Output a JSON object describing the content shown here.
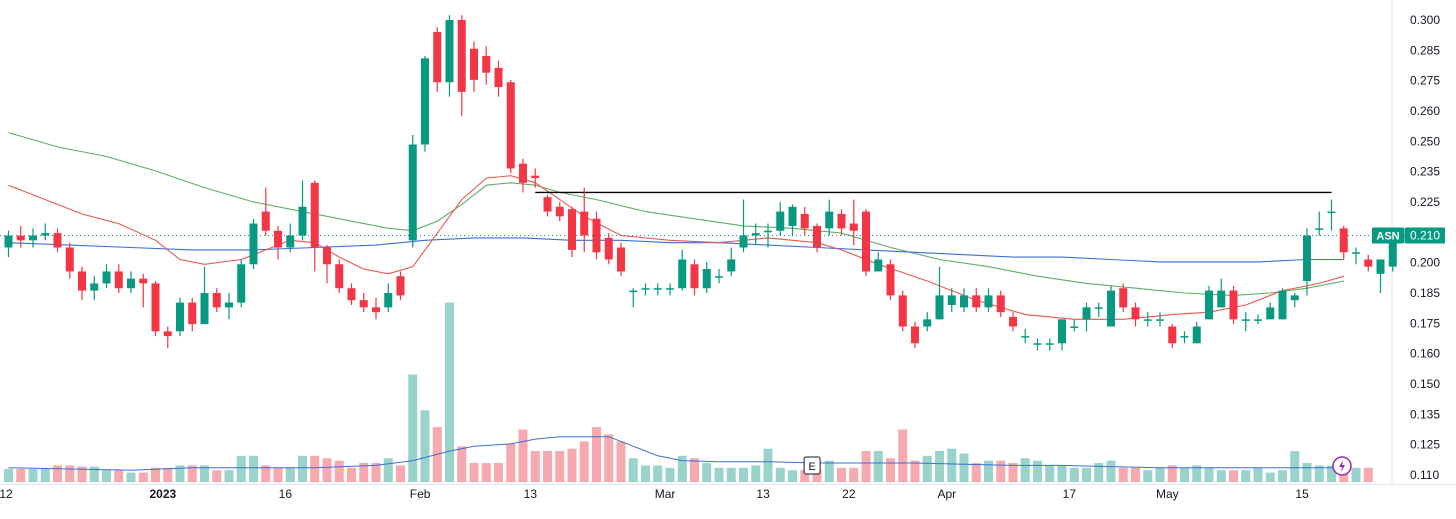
{
  "colors": {
    "up": "#089981",
    "down": "#f23645",
    "vol_up": "#9ad3cb",
    "vol_down": "#f6a9ae",
    "ma_green": "#5fae64",
    "ma_red": "#e8584f",
    "ma_blue": "#3b6fd6",
    "vol_ma": "#3b6fd6",
    "resistance": "#000000",
    "last_price": "#089981"
  },
  "chart_data": {
    "type": "candlestick",
    "symbol": "ASN",
    "last_price_label": "0.210",
    "earnings_marker": "E",
    "ylim": [
      0.107,
      0.302
    ],
    "y_ticks": [
      "0.300",
      "0.285",
      "0.275",
      "0.260",
      "0.250",
      "0.235",
      "0.225",
      "0.210",
      "0.200",
      "0.185",
      "0.175",
      "0.160",
      "0.150",
      "0.135",
      "0.125",
      "0.110"
    ],
    "x_ticks": [
      {
        "label": "12",
        "bar": -0.2,
        "major": false
      },
      {
        "label": "2023",
        "bar": 12.6,
        "major": true
      },
      {
        "label": "16",
        "bar": 22.6,
        "major": false
      },
      {
        "label": "Feb",
        "bar": 33.6,
        "major": false
      },
      {
        "label": "13",
        "bar": 42.6,
        "major": false
      },
      {
        "label": "Mar",
        "bar": 53.6,
        "major": false
      },
      {
        "label": "13",
        "bar": 61.6,
        "major": false
      },
      {
        "label": "22",
        "bar": 68.6,
        "major": false
      },
      {
        "label": "Apr",
        "bar": 76.6,
        "major": false
      },
      {
        "label": "17",
        "bar": 86.6,
        "major": false
      },
      {
        "label": "May",
        "bar": 94.6,
        "major": false
      },
      {
        "label": "15",
        "bar": 105.6,
        "major": false
      }
    ],
    "candles": [
      [
        0.205,
        0.21,
        0.201,
        0.212
      ],
      [
        0.21,
        0.208,
        0.205,
        0.214
      ],
      [
        0.208,
        0.21,
        0.205,
        0.213
      ],
      [
        0.21,
        0.211,
        0.208,
        0.215
      ],
      [
        0.211,
        0.205,
        0.203,
        0.213
      ],
      [
        0.205,
        0.195,
        0.192,
        0.207
      ],
      [
        0.195,
        0.187,
        0.183,
        0.197
      ],
      [
        0.187,
        0.19,
        0.183,
        0.193
      ],
      [
        0.19,
        0.195,
        0.188,
        0.198
      ],
      [
        0.195,
        0.188,
        0.186,
        0.198
      ],
      [
        0.188,
        0.192,
        0.186,
        0.195
      ],
      [
        0.192,
        0.19,
        0.18,
        0.194
      ],
      [
        0.19,
        0.17,
        0.168,
        0.191
      ],
      [
        0.17,
        0.168,
        0.163,
        0.172
      ],
      [
        0.17,
        0.182,
        0.168,
        0.184
      ],
      [
        0.182,
        0.173,
        0.17,
        0.184
      ],
      [
        0.173,
        0.186,
        0.173,
        0.197
      ],
      [
        0.186,
        0.18,
        0.178,
        0.188
      ],
      [
        0.18,
        0.182,
        0.175,
        0.186
      ],
      [
        0.182,
        0.198,
        0.18,
        0.2
      ],
      [
        0.198,
        0.215,
        0.196,
        0.217
      ],
      [
        0.22,
        0.212,
        0.21,
        0.23
      ],
      [
        0.212,
        0.205,
        0.2,
        0.214
      ],
      [
        0.205,
        0.21,
        0.203,
        0.215
      ],
      [
        0.21,
        0.222,
        0.208,
        0.233
      ],
      [
        0.232,
        0.205,
        0.195,
        0.233
      ],
      [
        0.205,
        0.198,
        0.19,
        0.206
      ],
      [
        0.198,
        0.188,
        0.186,
        0.2
      ],
      [
        0.188,
        0.183,
        0.181,
        0.19
      ],
      [
        0.183,
        0.18,
        0.178,
        0.186
      ],
      [
        0.18,
        0.178,
        0.175,
        0.184
      ],
      [
        0.18,
        0.186,
        0.178,
        0.19
      ],
      [
        0.193,
        0.185,
        0.183,
        0.195
      ],
      [
        0.208,
        0.248,
        0.205,
        0.252
      ],
      [
        0.248,
        0.284,
        0.245,
        0.285
      ],
      [
        0.295,
        0.274,
        0.27,
        0.297
      ],
      [
        0.274,
        0.3,
        0.268,
        0.302
      ],
      [
        0.3,
        0.27,
        0.26,
        0.302
      ],
      [
        0.288,
        0.275,
        0.27,
        0.291
      ],
      [
        0.285,
        0.278,
        0.273,
        0.289
      ],
      [
        0.28,
        0.272,
        0.268,
        0.283
      ],
      [
        0.274,
        0.238,
        0.236,
        0.275
      ],
      [
        0.24,
        0.232,
        0.228,
        0.242
      ],
      [
        0.235,
        0.234,
        0.23,
        0.238
      ],
      [
        0.226,
        0.22,
        0.218,
        0.227
      ],
      [
        0.222,
        0.218,
        0.216,
        0.224
      ],
      [
        0.221,
        0.204,
        0.201,
        0.222
      ],
      [
        0.22,
        0.21,
        0.203,
        0.23
      ],
      [
        0.217,
        0.203,
        0.2,
        0.22
      ],
      [
        0.209,
        0.2,
        0.198,
        0.211
      ],
      [
        0.205,
        0.195,
        0.193,
        0.207
      ],
      [
        0.187,
        0.187,
        0.18,
        0.188
      ],
      [
        0.188,
        0.188,
        0.185,
        0.19
      ],
      [
        0.188,
        0.188,
        0.185,
        0.19
      ],
      [
        0.188,
        0.188,
        0.185,
        0.19
      ],
      [
        0.188,
        0.2,
        0.187,
        0.204
      ],
      [
        0.198,
        0.188,
        0.185,
        0.2
      ],
      [
        0.188,
        0.196,
        0.186,
        0.199
      ],
      [
        0.193,
        0.193,
        0.19,
        0.196
      ],
      [
        0.195,
        0.2,
        0.193,
        0.205
      ],
      [
        0.205,
        0.21,
        0.203,
        0.225
      ],
      [
        0.21,
        0.211,
        0.206,
        0.215
      ],
      [
        0.212,
        0.212,
        0.205,
        0.215
      ],
      [
        0.212,
        0.22,
        0.21,
        0.224
      ],
      [
        0.214,
        0.222,
        0.21,
        0.223
      ],
      [
        0.219,
        0.213,
        0.21,
        0.222
      ],
      [
        0.214,
        0.205,
        0.203,
        0.215
      ],
      [
        0.213,
        0.22,
        0.21,
        0.225
      ],
      [
        0.219,
        0.213,
        0.21,
        0.221
      ],
      [
        0.215,
        0.212,
        0.206,
        0.225
      ],
      [
        0.22,
        0.195,
        0.193,
        0.221
      ],
      [
        0.195,
        0.2,
        0.195,
        0.203
      ],
      [
        0.198,
        0.185,
        0.183,
        0.2
      ],
      [
        0.185,
        0.172,
        0.17,
        0.187
      ],
      [
        0.172,
        0.165,
        0.163,
        0.174
      ],
      [
        0.172,
        0.175,
        0.17,
        0.178
      ],
      [
        0.175,
        0.185,
        0.175,
        0.197
      ],
      [
        0.181,
        0.185,
        0.178,
        0.188
      ],
      [
        0.18,
        0.185,
        0.178,
        0.188
      ],
      [
        0.185,
        0.18,
        0.178,
        0.188
      ],
      [
        0.18,
        0.185,
        0.178,
        0.188
      ],
      [
        0.185,
        0.178,
        0.176,
        0.187
      ],
      [
        0.176,
        0.172,
        0.17,
        0.178
      ],
      [
        0.168,
        0.168,
        0.165,
        0.171
      ],
      [
        0.165,
        0.165,
        0.162,
        0.167
      ],
      [
        0.165,
        0.165,
        0.162,
        0.167
      ],
      [
        0.165,
        0.175,
        0.162,
        0.175
      ],
      [
        0.172,
        0.172,
        0.17,
        0.175
      ],
      [
        0.175,
        0.18,
        0.17,
        0.182
      ],
      [
        0.18,
        0.18,
        0.176,
        0.182
      ],
      [
        0.172,
        0.187,
        0.172,
        0.189
      ],
      [
        0.188,
        0.18,
        0.178,
        0.19
      ],
      [
        0.18,
        0.175,
        0.172,
        0.182
      ],
      [
        0.175,
        0.175,
        0.172,
        0.178
      ],
      [
        0.175,
        0.175,
        0.172,
        0.178
      ],
      [
        0.172,
        0.165,
        0.163,
        0.173
      ],
      [
        0.168,
        0.168,
        0.165,
        0.17
      ],
      [
        0.165,
        0.172,
        0.165,
        0.174
      ],
      [
        0.175,
        0.187,
        0.175,
        0.189
      ],
      [
        0.18,
        0.187,
        0.18,
        0.192
      ],
      [
        0.187,
        0.175,
        0.173,
        0.189
      ],
      [
        0.175,
        0.175,
        0.17,
        0.178
      ],
      [
        0.175,
        0.175,
        0.173,
        0.177
      ],
      [
        0.175,
        0.18,
        0.175,
        0.182
      ],
      [
        0.175,
        0.187,
        0.175,
        0.188
      ],
      [
        0.183,
        0.185,
        0.18,
        0.186
      ],
      [
        0.191,
        0.21,
        0.185,
        0.213
      ],
      [
        0.213,
        0.213,
        0.21,
        0.22
      ],
      [
        0.22,
        0.22,
        0.212,
        0.225
      ],
      [
        0.213,
        0.203,
        0.2,
        0.214
      ],
      [
        0.203,
        0.203,
        0.198,
        0.205
      ],
      [
        0.2,
        0.197,
        0.195,
        0.202
      ],
      [
        0.194,
        0.2,
        0.186,
        0.2
      ],
      [
        0.197,
        0.21,
        0.195,
        0.213
      ],
      [
        0.21,
        0.21,
        0.207,
        0.213
      ]
    ],
    "volume_ma": [
      [
        0,
        0.113
      ],
      [
        5,
        0.1125
      ],
      [
        10,
        0.112
      ],
      [
        15,
        0.113
      ],
      [
        20,
        0.113
      ],
      [
        25,
        0.113
      ],
      [
        30,
        0.114
      ],
      [
        33,
        0.116
      ],
      [
        36,
        0.12
      ],
      [
        38,
        0.122
      ],
      [
        41,
        0.123
      ],
      [
        43,
        0.125
      ],
      [
        45,
        0.126
      ],
      [
        47,
        0.126
      ],
      [
        49,
        0.126
      ],
      [
        51,
        0.122
      ],
      [
        53,
        0.118
      ],
      [
        55,
        0.116
      ],
      [
        58,
        0.1155
      ],
      [
        62,
        0.1155
      ],
      [
        66,
        0.115
      ],
      [
        70,
        0.115
      ],
      [
        74,
        0.115
      ],
      [
        78,
        0.1145
      ],
      [
        82,
        0.114
      ],
      [
        86,
        0.114
      ],
      [
        90,
        0.1135
      ],
      [
        94,
        0.113
      ],
      [
        98,
        0.113
      ],
      [
        102,
        0.113
      ],
      [
        106,
        0.113
      ],
      [
        109,
        0.113
      ]
    ],
    "ma_green": [
      [
        0,
        0.253
      ],
      [
        4,
        0.247
      ],
      [
        8,
        0.243
      ],
      [
        12,
        0.237
      ],
      [
        16,
        0.23
      ],
      [
        20,
        0.224
      ],
      [
        24,
        0.22
      ],
      [
        28,
        0.216
      ],
      [
        31,
        0.213
      ],
      [
        33,
        0.212
      ],
      [
        35,
        0.216
      ],
      [
        37,
        0.223
      ],
      [
        39,
        0.231
      ],
      [
        41,
        0.232
      ],
      [
        43,
        0.231
      ],
      [
        45,
        0.228
      ],
      [
        48,
        0.225
      ],
      [
        52,
        0.22
      ],
      [
        56,
        0.217
      ],
      [
        60,
        0.214
      ],
      [
        64,
        0.213
      ],
      [
        68,
        0.211
      ],
      [
        72,
        0.205
      ],
      [
        76,
        0.2
      ],
      [
        80,
        0.197
      ],
      [
        84,
        0.193
      ],
      [
        88,
        0.19
      ],
      [
        92,
        0.188
      ],
      [
        96,
        0.186
      ],
      [
        100,
        0.185
      ],
      [
        103,
        0.186
      ],
      [
        106,
        0.188
      ],
      [
        109,
        0.191
      ]
    ],
    "ma_red": [
      [
        0,
        0.231
      ],
      [
        3,
        0.225
      ],
      [
        6,
        0.219
      ],
      [
        9,
        0.215
      ],
      [
        12,
        0.208
      ],
      [
        14,
        0.2
      ],
      [
        16,
        0.198
      ],
      [
        19,
        0.2
      ],
      [
        21,
        0.204
      ],
      [
        23,
        0.208
      ],
      [
        25,
        0.207
      ],
      [
        27,
        0.201
      ],
      [
        29,
        0.196
      ],
      [
        31,
        0.194
      ],
      [
        33,
        0.197
      ],
      [
        35,
        0.211
      ],
      [
        37,
        0.225
      ],
      [
        39,
        0.234
      ],
      [
        41,
        0.235
      ],
      [
        43,
        0.232
      ],
      [
        45,
        0.225
      ],
      [
        47,
        0.218
      ],
      [
        50,
        0.21
      ],
      [
        54,
        0.208
      ],
      [
        58,
        0.207
      ],
      [
        62,
        0.209
      ],
      [
        66,
        0.207
      ],
      [
        68,
        0.204
      ],
      [
        71,
        0.198
      ],
      [
        75,
        0.191
      ],
      [
        79,
        0.183
      ],
      [
        83,
        0.177
      ],
      [
        87,
        0.175
      ],
      [
        91,
        0.175
      ],
      [
        95,
        0.177
      ],
      [
        98,
        0.178
      ],
      [
        101,
        0.181
      ],
      [
        104,
        0.187
      ],
      [
        107,
        0.19
      ],
      [
        109,
        0.193
      ]
    ],
    "ma_blue": [
      [
        0,
        0.207
      ],
      [
        5,
        0.206
      ],
      [
        10,
        0.205
      ],
      [
        15,
        0.204
      ],
      [
        20,
        0.204
      ],
      [
        25,
        0.205
      ],
      [
        30,
        0.206
      ],
      [
        34,
        0.208
      ],
      [
        38,
        0.209
      ],
      [
        42,
        0.209
      ],
      [
        46,
        0.208
      ],
      [
        50,
        0.208
      ],
      [
        54,
        0.207
      ],
      [
        58,
        0.207
      ],
      [
        62,
        0.206
      ],
      [
        66,
        0.205
      ],
      [
        70,
        0.204
      ],
      [
        74,
        0.203
      ],
      [
        78,
        0.202
      ],
      [
        82,
        0.201
      ],
      [
        86,
        0.201
      ],
      [
        90,
        0.2
      ],
      [
        94,
        0.199
      ],
      [
        98,
        0.199
      ],
      [
        102,
        0.199
      ],
      [
        106,
        0.2
      ],
      [
        109,
        0.2
      ]
    ],
    "resistance": {
      "from_bar": 43,
      "to_bar": 108,
      "value": 0.228
    },
    "volume": [
      0.1125,
      0.1125,
      0.1125,
      0.1125,
      0.114,
      0.114,
      0.1135,
      0.1135,
      0.112,
      0.112,
      0.111,
      0.111,
      0.113,
      0.113,
      0.114,
      0.114,
      0.114,
      0.112,
      0.112,
      0.118,
      0.118,
      0.114,
      0.113,
      0.113,
      0.118,
      0.118,
      0.117,
      0.116,
      0.113,
      0.115,
      0.115,
      0.117,
      0.114,
      0.152,
      0.137,
      0.13,
      0.182,
      0.122,
      0.115,
      0.115,
      0.115,
      0.123,
      0.129,
      0.12,
      0.12,
      0.12,
      0.121,
      0.124,
      0.13,
      0.127,
      0.124,
      0.117,
      0.114,
      0.114,
      0.113,
      0.118,
      0.117,
      0.115,
      0.113,
      0.113,
      0.113,
      0.114,
      0.121,
      0.113,
      0.112,
      0.112,
      0.112,
      0.116,
      0.113,
      0.113,
      0.12,
      0.12,
      0.117,
      0.129,
      0.116,
      0.118,
      0.12,
      0.121,
      0.119,
      0.115,
      0.116,
      0.116,
      0.115,
      0.117,
      0.116,
      0.114,
      0.114,
      0.113,
      0.113,
      0.115,
      0.116,
      0.113,
      0.113,
      0.112,
      0.113,
      0.114,
      0.113,
      0.114,
      0.113,
      0.112,
      0.112,
      0.112,
      0.113,
      0.111,
      0.112,
      0.12,
      0.115,
      0.114,
      0.114,
      0.114,
      0.113,
      0.113
    ]
  }
}
